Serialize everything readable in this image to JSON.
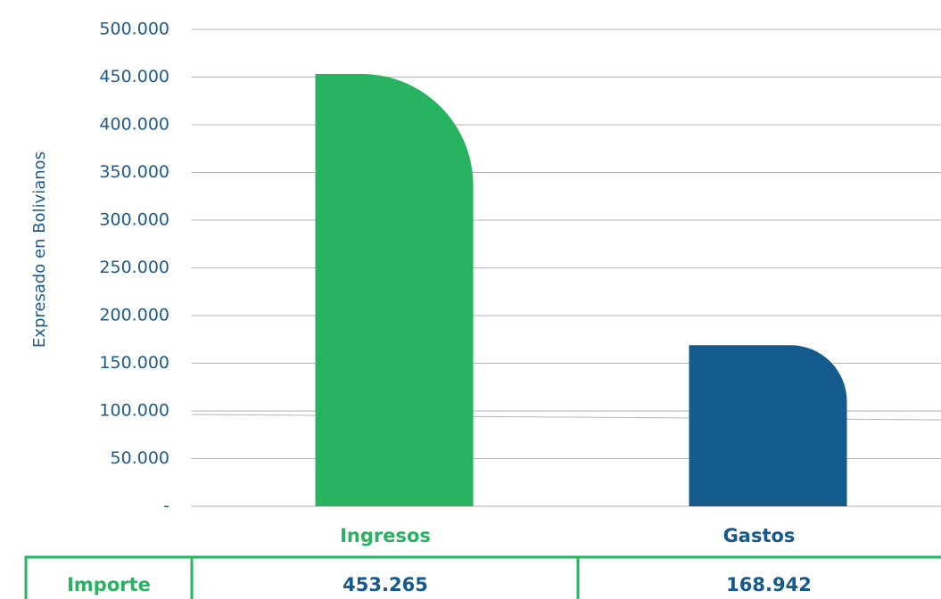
{
  "chart_data": {
    "type": "bar",
    "categories": [
      "Ingresos",
      "Gastos"
    ],
    "values": [
      453265,
      168942
    ],
    "ylabel": "Expresado en Bolivianos",
    "ylim": [
      0,
      500000
    ],
    "yticks": [
      0,
      50000,
      100000,
      150000,
      200000,
      250000,
      300000,
      350000,
      400000,
      450000,
      500000
    ],
    "ytick_labels": [
      "-",
      "50.000",
      "100.000",
      "150.000",
      "200.000",
      "250.000",
      "300.000",
      "350.000",
      "400.000",
      "450.000",
      "500.000"
    ],
    "grid": true,
    "colors": [
      "#27b360",
      "#145a8c"
    ],
    "category_label_colors": [
      "#27b360",
      "#145a8c"
    ]
  },
  "table": {
    "row_label": "Importe",
    "cells": [
      "453.265",
      "168.942"
    ],
    "border_color": "#27b360",
    "label_color": "#27b360",
    "value_color": "#145a8c"
  }
}
